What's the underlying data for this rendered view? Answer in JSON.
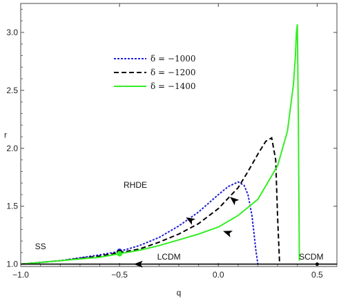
{
  "chart_data": {
    "type": "line",
    "xlabel": "q",
    "ylabel": "r",
    "xlim": [
      -1.0,
      0.6
    ],
    "ylim": [
      0.98,
      3.25
    ],
    "x_ticks": [
      -1.0,
      -0.5,
      0.0,
      0.5
    ],
    "x_tick_labels": [
      "−1.0",
      "−0.5",
      "0.0",
      "0.5"
    ],
    "y_ticks": [
      1.0,
      1.5,
      2.0,
      2.5,
      3.0
    ],
    "y_tick_labels": [
      "1.0",
      "1.5",
      "2.0",
      "2.5",
      "3.0"
    ],
    "legend_position": "top-left",
    "series": [
      {
        "name": "δ = −1000",
        "color": "#1f1fd6",
        "dash": "dotted",
        "x": [
          -1.0,
          -0.8,
          -0.6,
          -0.5,
          -0.4,
          -0.3,
          -0.2,
          -0.1,
          0.0,
          0.05,
          0.1,
          0.13,
          0.15,
          0.17,
          0.18,
          0.19,
          0.2
        ],
        "y": [
          1.0,
          1.03,
          1.08,
          1.11,
          1.16,
          1.23,
          1.33,
          1.45,
          1.6,
          1.67,
          1.71,
          1.68,
          1.6,
          1.42,
          1.27,
          1.12,
          1.0
        ]
      },
      {
        "name": "δ = −1200",
        "color": "#000000",
        "dash": "dashed",
        "x": [
          -1.0,
          -0.8,
          -0.6,
          -0.5,
          -0.4,
          -0.3,
          -0.2,
          -0.1,
          0.0,
          0.1,
          0.15,
          0.2,
          0.24,
          0.27,
          0.29,
          0.3,
          0.31
        ],
        "y": [
          1.0,
          1.03,
          1.07,
          1.1,
          1.13,
          1.19,
          1.26,
          1.35,
          1.48,
          1.66,
          1.8,
          1.95,
          2.06,
          2.09,
          1.9,
          1.4,
          1.0
        ]
      },
      {
        "name": "δ = −1400",
        "color": "#33ee22",
        "dash": "solid",
        "x": [
          -1.0,
          -0.8,
          -0.6,
          -0.5,
          -0.4,
          -0.3,
          -0.2,
          -0.1,
          0.0,
          0.1,
          0.2,
          0.3,
          0.35,
          0.38,
          0.39,
          0.395,
          0.4,
          0.405,
          0.41
        ],
        "y": [
          1.0,
          1.03,
          1.06,
          1.09,
          1.12,
          1.16,
          1.21,
          1.26,
          1.32,
          1.42,
          1.56,
          1.85,
          2.15,
          2.55,
          2.8,
          3.0,
          3.07,
          2.2,
          1.03
        ]
      },
      {
        "name": "LCDM",
        "color": "#000000",
        "dash": "solid",
        "x": [
          -1.0,
          0.6
        ],
        "y": [
          1.0,
          1.0
        ]
      }
    ],
    "points": [
      {
        "x": -0.5,
        "y": 1.11,
        "color": "#1f1fd6"
      },
      {
        "x": -0.5,
        "y": 1.1,
        "color": "#000000"
      },
      {
        "x": -0.5,
        "y": 1.09,
        "color": "#33ee22"
      },
      {
        "x": 0.5,
        "y": 1.0,
        "color": "#000000"
      }
    ],
    "arrows": [
      {
        "x": -0.14,
        "y": 1.38,
        "angle": 210
      },
      {
        "x": 0.08,
        "y": 1.55,
        "angle": 220
      },
      {
        "x": 0.05,
        "y": 1.27,
        "angle": 200
      },
      {
        "x": -0.4,
        "y": 1.0,
        "angle": 180
      }
    ],
    "annotations": [
      {
        "text": "RHDE",
        "x": -0.42,
        "y": 1.66
      },
      {
        "text": "SS",
        "x": -0.9,
        "y": 1.13
      },
      {
        "text": "LCDM",
        "x": -0.25,
        "y": 1.04
      },
      {
        "text": "SCDM",
        "x": 0.47,
        "y": 1.04
      }
    ]
  }
}
